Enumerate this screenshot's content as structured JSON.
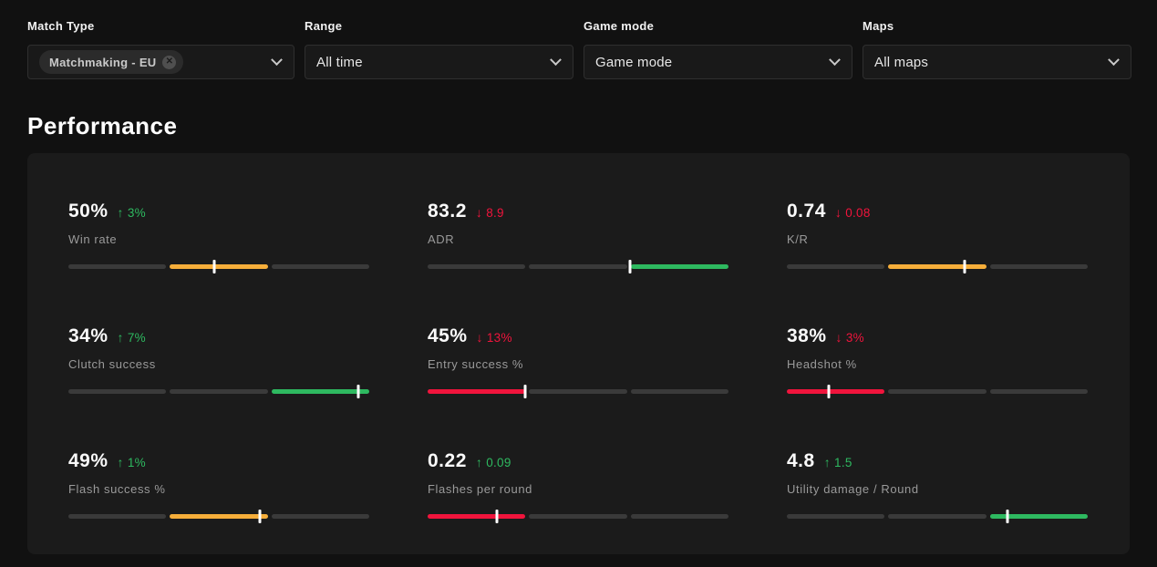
{
  "colors": {
    "gray": "#3a3a3a",
    "orange": "#f6ae3a",
    "green": "#2eb960",
    "red": "#f0143c",
    "panel_bg": "#1b1b1b",
    "page_bg": "#111111"
  },
  "filters": [
    {
      "label": "Match Type",
      "tag": "Matchmaking - EU",
      "remove_icon": "✕"
    },
    {
      "label": "Range",
      "value": "All time"
    },
    {
      "label": "Game mode",
      "value": "Game mode"
    },
    {
      "label": "Maps",
      "value": "All maps"
    }
  ],
  "section_title": "Performance",
  "cards": [
    {
      "value": "50%",
      "trend": "up",
      "delta": "3%",
      "label": "Win rate",
      "segments": [
        "gray",
        "orange",
        "gray"
      ],
      "marker": 0.485
    },
    {
      "value": "83.2",
      "trend": "down",
      "delta": "8.9",
      "label": "ADR",
      "segments": [
        "gray",
        "gray",
        "green"
      ],
      "marker": 0.672
    },
    {
      "value": "0.74",
      "trend": "down",
      "delta": "0.08",
      "label": "K/R",
      "segments": [
        "gray",
        "orange",
        "gray"
      ],
      "marker": 0.592
    },
    {
      "value": "34%",
      "trend": "up",
      "delta": "7%",
      "label": "Clutch success",
      "segments": [
        "gray",
        "gray",
        "green"
      ],
      "marker": 0.963
    },
    {
      "value": "45%",
      "trend": "down",
      "delta": "13%",
      "label": "Entry success %",
      "segments": [
        "red",
        "gray",
        "gray"
      ],
      "marker": 0.325
    },
    {
      "value": "38%",
      "trend": "down",
      "delta": "3%",
      "label": "Headshot %",
      "segments": [
        "red",
        "gray",
        "gray"
      ],
      "marker": 0.14
    },
    {
      "value": "49%",
      "trend": "up",
      "delta": "1%",
      "label": "Flash success %",
      "segments": [
        "gray",
        "orange",
        "gray"
      ],
      "marker": 0.636
    },
    {
      "value": "0.22",
      "trend": "up",
      "delta": "0.09",
      "label": "Flashes per round",
      "segments": [
        "red",
        "gray",
        "gray"
      ],
      "marker": 0.23
    },
    {
      "value": "4.8",
      "trend": "up",
      "delta": "1.5",
      "label": "Utility damage / Round",
      "segments": [
        "gray",
        "gray",
        "green"
      ],
      "marker": 0.732
    }
  ]
}
